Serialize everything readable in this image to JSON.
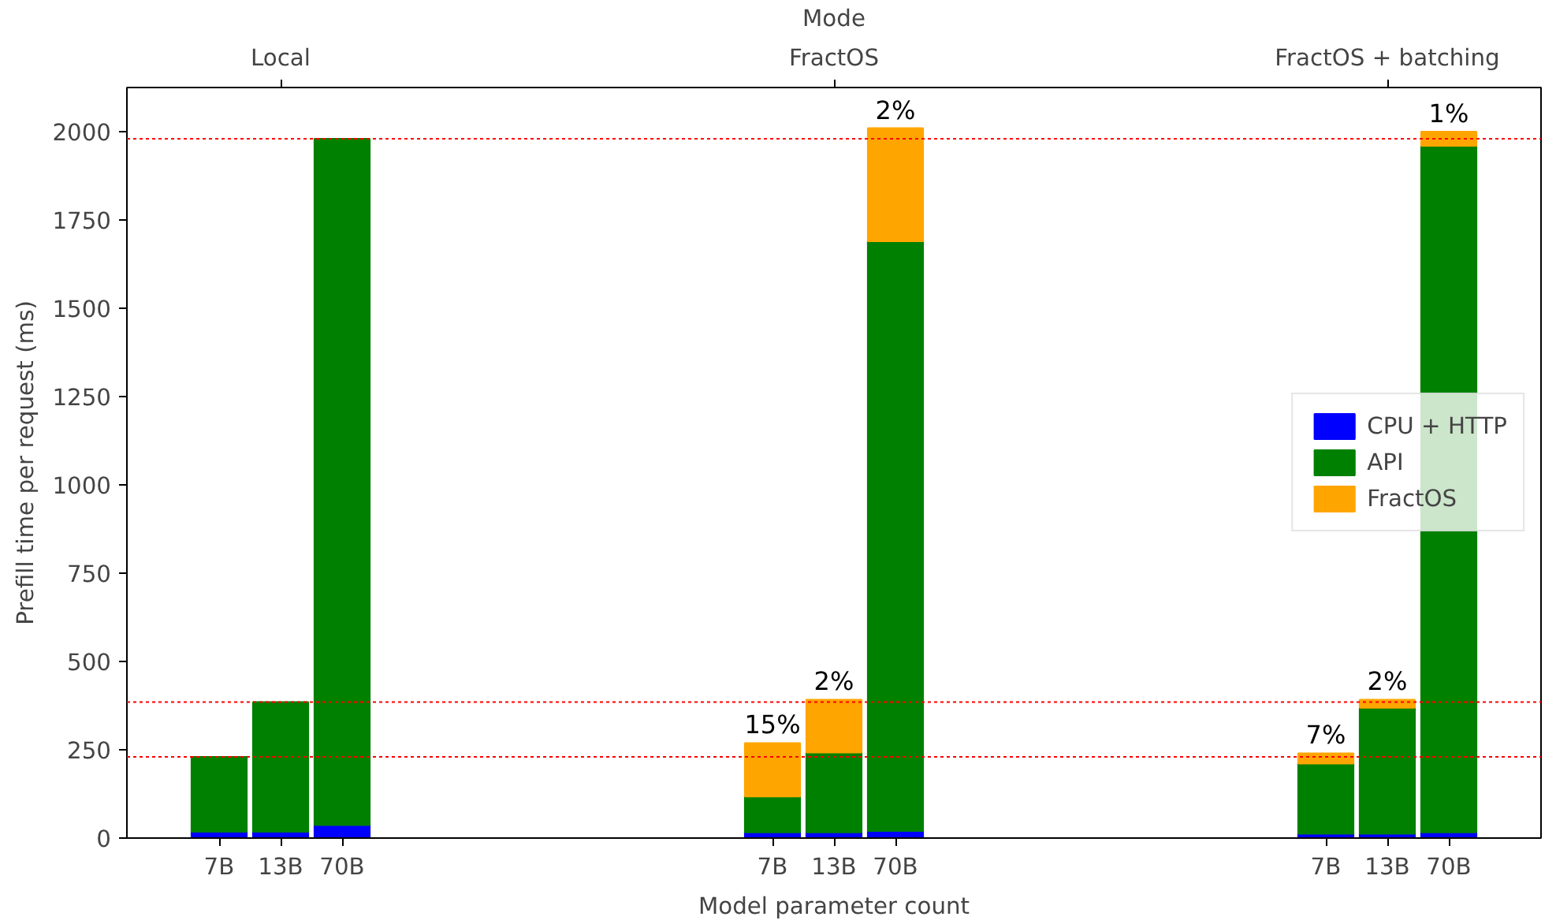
{
  "chart_data": {
    "type": "bar",
    "stacked": true,
    "xlabel": "Model parameter count",
    "ylabel": "Prefill time per request (ms)",
    "x2label": "Mode",
    "categories": [
      "7B",
      "13B",
      "70B",
      null,
      null,
      null,
      null,
      null,
      null,
      "7B",
      "13B",
      "70B",
      null,
      null,
      null,
      null,
      null,
      null,
      "7B",
      "13B",
      "70B"
    ],
    "series": [
      {
        "name": "CPU + HTTP",
        "color": "#0000ff",
        "values": [
          18,
          18,
          37,
          null,
          null,
          null,
          null,
          null,
          null,
          16,
          16,
          20,
          null,
          null,
          null,
          null,
          null,
          null,
          12,
          12,
          16
        ]
      },
      {
        "name": "API",
        "color": "#008000",
        "values": [
          212,
          367,
          1943,
          null,
          null,
          null,
          null,
          null,
          null,
          102,
          226,
          1670,
          null,
          null,
          null,
          null,
          null,
          null,
          199,
          357,
          1944
        ]
      },
      {
        "name": "FractOS",
        "color": "#ffa500",
        "values": [
          null,
          null,
          null,
          null,
          null,
          null,
          null,
          null,
          null,
          151,
          150,
          320,
          null,
          null,
          null,
          null,
          null,
          null,
          29,
          23,
          40
        ]
      }
    ],
    "annotations": [
      "Local",
      "FractOS",
      "FractOS + batching",
      "15%",
      "2%",
      "2%",
      "7%",
      "2%",
      "1%"
    ],
    "ylim": [
      0,
      2125
    ],
    "yticks": [
      0,
      250,
      500,
      750,
      1000,
      1250,
      1500,
      1750,
      2000
    ],
    "ref_lines": [
      {
        "axis": "y",
        "value": 230,
        "color": "#ff0000",
        "line_style": "dotted"
      },
      {
        "axis": "y",
        "value": 385,
        "color": "#ff0000",
        "line_style": "dotted"
      },
      {
        "axis": "y",
        "value": 1980,
        "color": "#ff0000",
        "line_style": "dotted"
      }
    ],
    "legend": "right",
    "grid": false
  }
}
